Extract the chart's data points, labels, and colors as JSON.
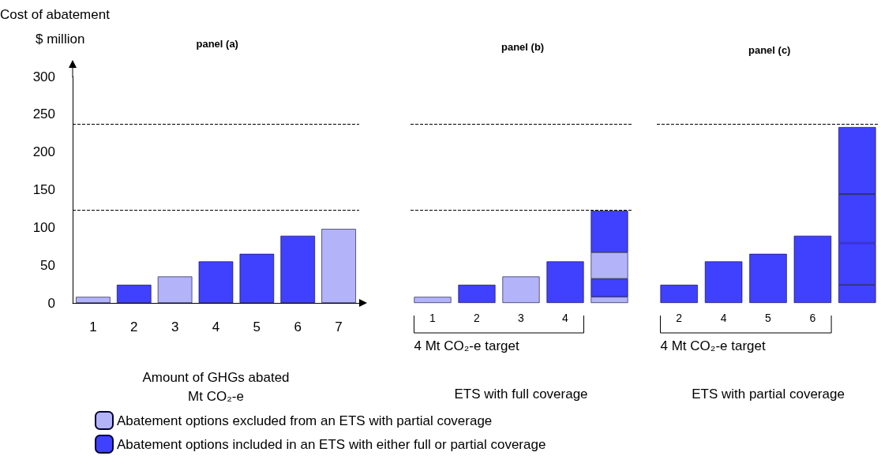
{
  "chart_data": [
    {
      "type": "bar",
      "title": "panel (a)",
      "ylabel": "Cost of abatement\n$ million",
      "xlabel": "Amount of GHGs abated\nMt CO₂-e",
      "categories": [
        "1",
        "2",
        "3",
        "4",
        "5",
        "6",
        "7"
      ],
      "stacked": true,
      "ylim": [
        0,
        300
      ],
      "yticks": [
        0,
        50,
        100,
        150,
        200,
        250,
        300
      ],
      "legend": "bottom",
      "series": [
        {
          "name": "Abatement options excluded from an ETS with partial coverage",
          "color": "#b3b3fa",
          "values": [
            8,
            null,
            35,
            null,
            null,
            null,
            98
          ]
        },
        {
          "name": "Abatement options included in an ETS with either full or partial coverage",
          "color": "#4040ff",
          "values": [
            null,
            24,
            null,
            55,
            65,
            89,
            null
          ]
        }
      ],
      "ref_lines": [
        {
          "axis": "y",
          "value": 123,
          "line_style": "dashed",
          "color": "#000000"
        },
        {
          "axis": "y",
          "value": 237,
          "line_style": "dashed",
          "color": "#000000"
        }
      ]
    },
    {
      "type": "bar",
      "title": "panel (b)",
      "xlabel": "ETS with full coverage",
      "annotations": [
        "4 Mt CO₂-e target"
      ],
      "categories": [
        "1",
        "2",
        "3",
        "4",
        null
      ],
      "stacked": true,
      "ylim": [
        0,
        300
      ],
      "tick_labels": "x",
      "series": [
        {
          "color": "#b3b3fa",
          "values": [
            8,
            null,
            null,
            null,
            8
          ]
        },
        {
          "color": "#4040ff",
          "values": [
            null,
            24,
            null,
            null,
            24
          ]
        },
        {
          "color": "#b3b3fa",
          "values": [
            null,
            null,
            35,
            null,
            35
          ]
        },
        {
          "color": "#4040ff",
          "values": [
            null,
            null,
            null,
            55,
            55
          ]
        }
      ],
      "ref_lines": [
        {
          "axis": "y",
          "value": 123,
          "line_style": "dashed",
          "color": "#000000"
        },
        {
          "axis": "y",
          "value": 237,
          "line_style": "dashed",
          "color": "#000000"
        }
      ]
    },
    {
      "type": "bar",
      "title": "panel (c)",
      "xlabel": "ETS with partial coverage",
      "annotations": [
        "4 Mt CO₂-e target"
      ],
      "categories": [
        "2",
        "4",
        "5",
        "6",
        null
      ],
      "stacked": true,
      "ylim": [
        0,
        300
      ],
      "tick_labels": "x",
      "series": [
        {
          "color": "#4040ff",
          "values": [
            24,
            null,
            null,
            null,
            24
          ]
        },
        {
          "color": "#4040ff",
          "values": [
            null,
            55,
            null,
            null,
            55
          ]
        },
        {
          "color": "#4040ff",
          "values": [
            null,
            null,
            65,
            null,
            65
          ]
        },
        {
          "color": "#4040ff",
          "values": [
            null,
            null,
            null,
            89,
            89
          ]
        }
      ],
      "ref_lines": [
        {
          "axis": "y",
          "value": 237,
          "line_style": "dashed",
          "color": "#000000"
        }
      ]
    }
  ]
}
